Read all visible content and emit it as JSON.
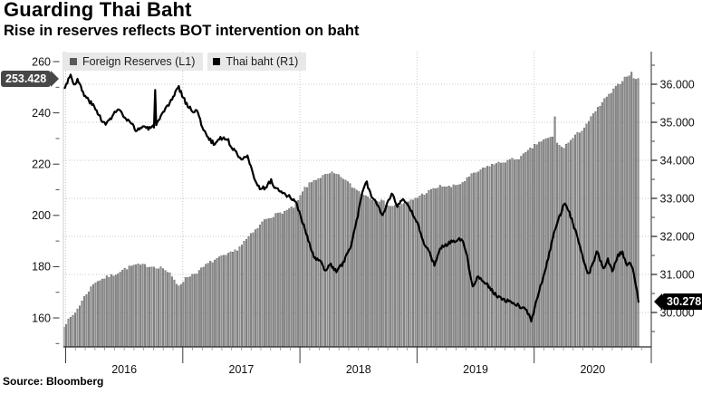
{
  "header": {
    "title": "Guarding Thai Baht",
    "subtitle": "Rise in reserves reflects BOT intervention on baht"
  },
  "source_label": "Source: Bloomberg",
  "legend": {
    "items": [
      {
        "label": "Foreign Reserves (L1)",
        "swatch": "#5a5a5a"
      },
      {
        "label": "Thai baht (R1)",
        "swatch": "#000000"
      }
    ]
  },
  "badges": {
    "reserves_last": {
      "label": "253.428",
      "value": 253.428,
      "axis": "left",
      "bg": "#474747"
    },
    "baht_last": {
      "label": "30.278",
      "value": 30.278,
      "axis": "right",
      "bg": "#000000"
    }
  },
  "chart_data": {
    "type": "combo-bar-line-dual-axis",
    "x_axis": {
      "start": 2015.985,
      "end": 2020.89,
      "year_boundaries": [
        2016,
        2017,
        2018,
        2019,
        2020,
        2021
      ],
      "year_labels": [
        "2016",
        "2017",
        "2018",
        "2019",
        "2020"
      ],
      "minor_ticks": "monthly"
    },
    "left_axis": {
      "ticks": [
        {
          "v": 160,
          "label": "160"
        },
        {
          "v": 180,
          "label": "180"
        },
        {
          "v": 200,
          "label": "200"
        },
        {
          "v": 220,
          "label": "220"
        },
        {
          "v": 240,
          "label": "240"
        },
        {
          "v": 260,
          "label": "260"
        }
      ],
      "minor_ticks": [
        150,
        170,
        190,
        210,
        230,
        250
      ],
      "plot_range": [
        148.7,
        263.9
      ]
    },
    "right_axis": {
      "ticks": [
        {
          "v": 30,
          "label": "30.000"
        },
        {
          "v": 31,
          "label": "31.000"
        },
        {
          "v": 32,
          "label": "32.000"
        },
        {
          "v": 33,
          "label": "33.000"
        },
        {
          "v": 34,
          "label": "34.000"
        },
        {
          "v": 35,
          "label": "35.000"
        },
        {
          "v": 36,
          "label": "36.000"
        }
      ],
      "minor_ticks": [
        29.5,
        30.5,
        31.5,
        32.5,
        33.5,
        34.5,
        35.5,
        36.5
      ],
      "plot_range": [
        29.1,
        36.86
      ]
    },
    "series": [
      {
        "name": "Foreign Reserves (L1)",
        "type": "bar",
        "axis": "left",
        "color": "#8f8f8f",
        "edge_color": "#555555",
        "sampling": "weekly",
        "last_value": 253.428,
        "anchors": [
          [
            2015.985,
            157
          ],
          [
            2016.08,
            162
          ],
          [
            2016.17,
            169
          ],
          [
            2016.25,
            174
          ],
          [
            2016.33,
            175.5
          ],
          [
            2016.42,
            177
          ],
          [
            2016.5,
            179
          ],
          [
            2016.58,
            180.5
          ],
          [
            2016.67,
            180.5
          ],
          [
            2016.75,
            180
          ],
          [
            2016.83,
            179.5
          ],
          [
            2016.89,
            177
          ],
          [
            2016.96,
            172.5
          ],
          [
            2017.04,
            176
          ],
          [
            2017.13,
            178
          ],
          [
            2017.21,
            181
          ],
          [
            2017.29,
            183
          ],
          [
            2017.38,
            184.5
          ],
          [
            2017.46,
            186.5
          ],
          [
            2017.54,
            190.5
          ],
          [
            2017.63,
            194.5
          ],
          [
            2017.7,
            198.5
          ],
          [
            2017.78,
            200
          ],
          [
            2017.87,
            201.5
          ],
          [
            2017.96,
            203.5
          ],
          [
            2018.04,
            210.5
          ],
          [
            2018.13,
            214
          ],
          [
            2018.21,
            215.5
          ],
          [
            2018.28,
            216.5
          ],
          [
            2018.37,
            214.5
          ],
          [
            2018.45,
            211
          ],
          [
            2018.53,
            208.5
          ],
          [
            2018.62,
            206.5
          ],
          [
            2018.7,
            205.5
          ],
          [
            2018.78,
            203.5
          ],
          [
            2018.87,
            204
          ],
          [
            2018.96,
            206
          ],
          [
            2019.04,
            208
          ],
          [
            2019.13,
            210
          ],
          [
            2019.21,
            211.5
          ],
          [
            2019.29,
            211
          ],
          [
            2019.38,
            212.5
          ],
          [
            2019.46,
            215.5
          ],
          [
            2019.54,
            217.5
          ],
          [
            2019.62,
            219.5
          ],
          [
            2019.71,
            220.5
          ],
          [
            2019.79,
            221.5
          ],
          [
            2019.88,
            222.5
          ],
          [
            2019.96,
            225.5
          ],
          [
            2020.04,
            228.5
          ],
          [
            2020.12,
            230
          ],
          [
            2020.16,
            230.5
          ],
          [
            2020.175,
            231
          ],
          [
            2020.21,
            227
          ],
          [
            2020.25,
            226.5
          ],
          [
            2020.33,
            230
          ],
          [
            2020.42,
            234
          ],
          [
            2020.5,
            239
          ],
          [
            2020.58,
            244
          ],
          [
            2020.66,
            248
          ],
          [
            2020.73,
            251.5
          ],
          [
            2020.79,
            254.5
          ],
          [
            2020.83,
            255.5
          ],
          [
            2020.86,
            252.8
          ],
          [
            2020.89,
            253.428
          ]
        ],
        "spike_overrides": [
          [
            2020.175,
            238.5
          ]
        ]
      },
      {
        "name": "Thai baht (R1)",
        "type": "line",
        "axis": "right",
        "color": "#000000",
        "sampling": "daily",
        "last_value": 30.278,
        "anchors": [
          [
            2015.985,
            35.9
          ],
          [
            2016.02,
            36.1
          ],
          [
            2016.045,
            36.27
          ],
          [
            2016.07,
            35.98
          ],
          [
            2016.1,
            36.12
          ],
          [
            2016.16,
            35.7
          ],
          [
            2016.22,
            35.5
          ],
          [
            2016.28,
            35.22
          ],
          [
            2016.34,
            34.92
          ],
          [
            2016.4,
            35.18
          ],
          [
            2016.45,
            35.35
          ],
          [
            2016.51,
            35.08
          ],
          [
            2016.56,
            34.95
          ],
          [
            2016.61,
            34.78
          ],
          [
            2016.66,
            34.9
          ],
          [
            2016.72,
            34.82
          ],
          [
            2016.77,
            34.95
          ],
          [
            2016.8,
            35.05
          ],
          [
            2016.85,
            35.32
          ],
          [
            2016.9,
            35.55
          ],
          [
            2016.96,
            35.95
          ],
          [
            2017.02,
            35.55
          ],
          [
            2017.07,
            35.32
          ],
          [
            2017.12,
            35.3
          ],
          [
            2017.16,
            34.95
          ],
          [
            2017.21,
            34.6
          ],
          [
            2017.27,
            34.42
          ],
          [
            2017.32,
            34.6
          ],
          [
            2017.38,
            34.55
          ],
          [
            2017.44,
            34.25
          ],
          [
            2017.5,
            34.05
          ],
          [
            2017.55,
            34.15
          ],
          [
            2017.6,
            33.6
          ],
          [
            2017.65,
            33.3
          ],
          [
            2017.7,
            33.25
          ],
          [
            2017.75,
            33.47
          ],
          [
            2017.8,
            33.25
          ],
          [
            2017.85,
            33.12
          ],
          [
            2017.9,
            33.05
          ],
          [
            2017.96,
            32.95
          ],
          [
            2018.02,
            32.4
          ],
          [
            2018.07,
            31.9
          ],
          [
            2018.12,
            31.45
          ],
          [
            2018.17,
            31.35
          ],
          [
            2018.21,
            31.12
          ],
          [
            2018.26,
            31.25
          ],
          [
            2018.31,
            31.08
          ],
          [
            2018.37,
            31.3
          ],
          [
            2018.43,
            31.7
          ],
          [
            2018.48,
            32.35
          ],
          [
            2018.53,
            33.1
          ],
          [
            2018.57,
            33.42
          ],
          [
            2018.62,
            33.0
          ],
          [
            2018.66,
            32.85
          ],
          [
            2018.71,
            32.55
          ],
          [
            2018.75,
            32.92
          ],
          [
            2018.79,
            33.18
          ],
          [
            2018.83,
            32.78
          ],
          [
            2018.87,
            32.95
          ],
          [
            2018.91,
            32.85
          ],
          [
            2018.96,
            32.6
          ],
          [
            2019.0,
            32.38
          ],
          [
            2019.05,
            31.9
          ],
          [
            2019.1,
            31.6
          ],
          [
            2019.15,
            31.25
          ],
          [
            2019.2,
            31.7
          ],
          [
            2019.26,
            31.8
          ],
          [
            2019.32,
            31.9
          ],
          [
            2019.38,
            31.95
          ],
          [
            2019.43,
            31.5
          ],
          [
            2019.47,
            30.68
          ],
          [
            2019.52,
            30.95
          ],
          [
            2019.57,
            30.85
          ],
          [
            2019.63,
            30.62
          ],
          [
            2019.69,
            30.4
          ],
          [
            2019.75,
            30.32
          ],
          [
            2019.81,
            30.25
          ],
          [
            2019.87,
            30.18
          ],
          [
            2019.93,
            30.08
          ],
          [
            2019.978,
            29.8
          ],
          [
            2020.02,
            30.3
          ],
          [
            2020.07,
            30.85
          ],
          [
            2020.12,
            31.45
          ],
          [
            2020.17,
            32.1
          ],
          [
            2020.22,
            32.55
          ],
          [
            2020.26,
            32.9
          ],
          [
            2020.31,
            32.55
          ],
          [
            2020.36,
            32.05
          ],
          [
            2020.41,
            31.55
          ],
          [
            2020.46,
            30.95
          ],
          [
            2020.5,
            31.3
          ],
          [
            2020.54,
            31.62
          ],
          [
            2020.59,
            31.12
          ],
          [
            2020.63,
            31.38
          ],
          [
            2020.67,
            31.1
          ],
          [
            2020.71,
            31.45
          ],
          [
            2020.75,
            31.6
          ],
          [
            2020.79,
            31.28
          ],
          [
            2020.82,
            31.35
          ],
          [
            2020.85,
            31.05
          ],
          [
            2020.875,
            30.6
          ],
          [
            2020.89,
            30.278
          ]
        ],
        "spike_overrides": [
          [
            2016.768,
            35.85
          ]
        ]
      }
    ]
  }
}
